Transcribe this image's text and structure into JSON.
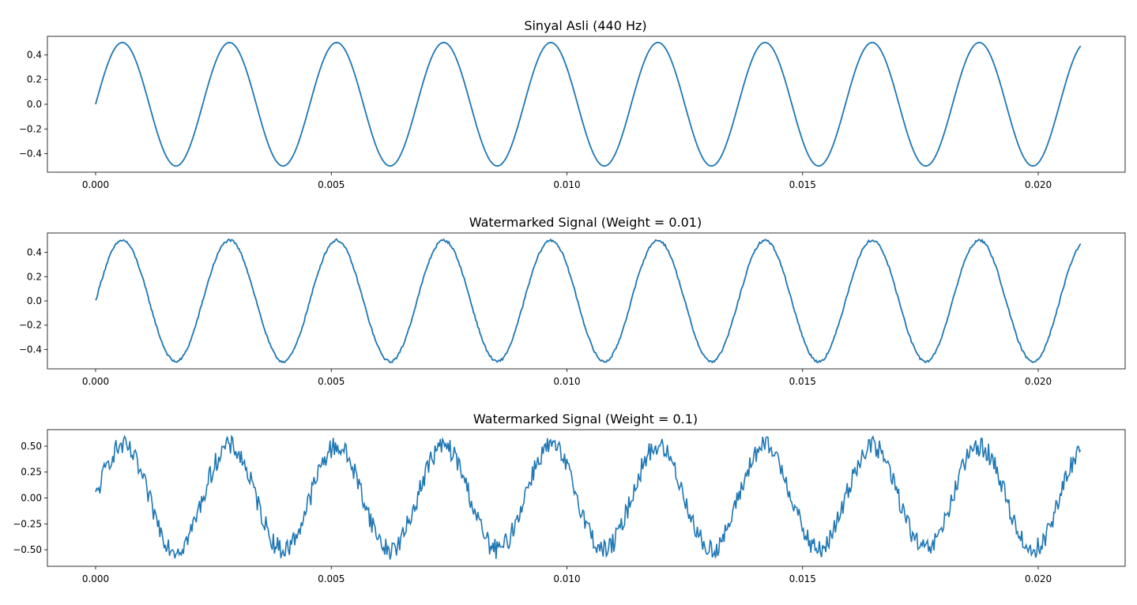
{
  "chart_data": [
    {
      "type": "line",
      "title": "Sinyal Asli (440 Hz)",
      "xlim": [
        0,
        0.0209
      ],
      "ylim": [
        -0.55,
        0.55
      ],
      "xticks": [
        0,
        0.005,
        0.01,
        0.015,
        0.02
      ],
      "xtick_labels": [
        "0.000",
        "0.005",
        "0.010",
        "0.015",
        "0.020"
      ],
      "yticks": [
        -0.4,
        -0.2,
        0.0,
        0.2,
        0.4
      ],
      "ytick_labels": [
        "−0.4",
        "−0.2",
        "0.0",
        "0.2",
        "0.4"
      ],
      "series": [
        {
          "color": "#1f77b4",
          "function": "sine",
          "amplitude": 0.5,
          "frequency_hz": 440,
          "x_start": 0,
          "x_end": 0.0209,
          "noise_amplitude": 0
        }
      ],
      "grid": false,
      "legend": "none"
    },
    {
      "type": "line",
      "title": "Watermarked Signal (Weight = 0.01)",
      "xlim": [
        0,
        0.0209
      ],
      "ylim": [
        -0.56,
        0.56
      ],
      "xticks": [
        0,
        0.005,
        0.01,
        0.015,
        0.02
      ],
      "xtick_labels": [
        "0.000",
        "0.005",
        "0.010",
        "0.015",
        "0.020"
      ],
      "yticks": [
        -0.4,
        -0.2,
        0.0,
        0.2,
        0.4
      ],
      "ytick_labels": [
        "−0.4",
        "−0.2",
        "0.0",
        "0.2",
        "0.4"
      ],
      "series": [
        {
          "color": "#1f77b4",
          "function": "sine",
          "amplitude": 0.5,
          "frequency_hz": 440,
          "x_start": 0,
          "x_end": 0.0209,
          "noise_amplitude": 0.01
        }
      ],
      "grid": false,
      "legend": "none"
    },
    {
      "type": "line",
      "title": "Watermarked Signal (Weight = 0.1)",
      "xlim": [
        0,
        0.0209
      ],
      "ylim": [
        -0.66,
        0.66
      ],
      "xticks": [
        0,
        0.005,
        0.01,
        0.015,
        0.02
      ],
      "xtick_labels": [
        "0.000",
        "0.005",
        "0.010",
        "0.015",
        "0.020"
      ],
      "yticks": [
        -0.5,
        -0.25,
        0.0,
        0.25,
        0.5
      ],
      "ytick_labels": [
        "−0.50",
        "−0.25",
        "0.00",
        "0.25",
        "0.50"
      ],
      "series": [
        {
          "color": "#1f77b4",
          "function": "sine",
          "amplitude": 0.5,
          "frequency_hz": 440,
          "x_start": 0,
          "x_end": 0.0209,
          "noise_amplitude": 0.1
        }
      ],
      "grid": false,
      "legend": "none"
    }
  ]
}
